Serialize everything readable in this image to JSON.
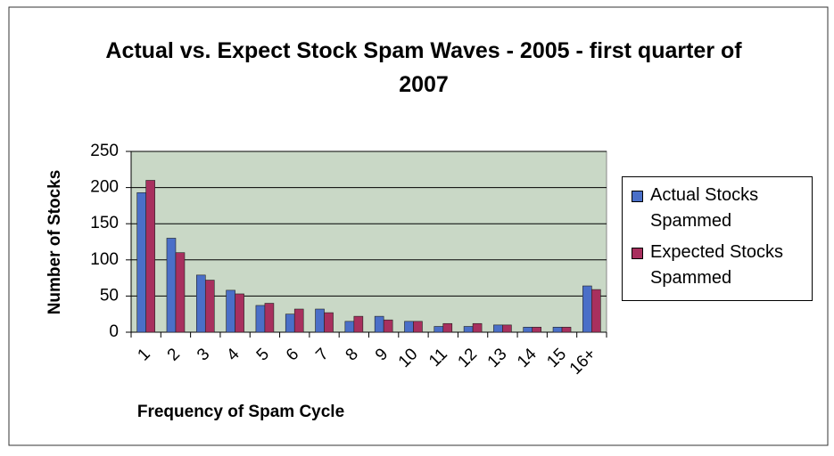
{
  "chart_data": {
    "type": "bar",
    "title": "Actual vs. Expect Stock Spam Waves - 2005 - first quarter of 2007",
    "x_label": "Frequency of Spam Cycle",
    "y_label": "Number of Stocks",
    "categories": [
      "1",
      "2",
      "3",
      "4",
      "5",
      "6",
      "7",
      "8",
      "9",
      "10",
      "11",
      "12",
      "13",
      "14",
      "15",
      "16+"
    ],
    "series": [
      {
        "name": "Actual Stocks Spammed",
        "color": "#4a6fc8",
        "values": [
          193,
          130,
          79,
          58,
          37,
          25,
          32,
          15,
          22,
          15,
          8,
          8,
          10,
          7,
          7,
          64
        ]
      },
      {
        "name": "Expected Stocks Spammed",
        "color": "#a8305e",
        "values": [
          210,
          110,
          72,
          53,
          40,
          32,
          27,
          22,
          17,
          15,
          12,
          12,
          10,
          7,
          7,
          59
        ]
      }
    ],
    "ylim": [
      0,
      250
    ],
    "yticks": [
      0,
      50,
      100,
      150,
      200,
      250
    ],
    "grid": true,
    "legend": "right"
  }
}
